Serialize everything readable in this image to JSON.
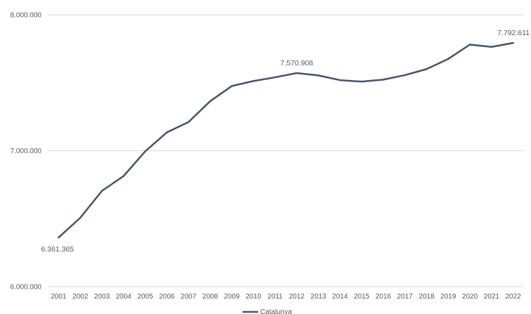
{
  "chart_data": {
    "type": "line",
    "title": "",
    "xlabel": "",
    "ylabel": "",
    "ylim": [
      6000000,
      8000000
    ],
    "yticks": [
      6000000,
      7000000,
      8000000
    ],
    "ytick_labels": [
      "6.000.000",
      "7.000.000",
      "8.000.000"
    ],
    "grid": "horizontal",
    "legend_position": "bottom",
    "categories": [
      "2001",
      "2002",
      "2003",
      "2004",
      "2005",
      "2006",
      "2007",
      "2008",
      "2009",
      "2010",
      "2011",
      "2012",
      "2013",
      "2014",
      "2015",
      "2016",
      "2017",
      "2018",
      "2019",
      "2020",
      "2021",
      "2022"
    ],
    "series": [
      {
        "name": "Catalunya",
        "color": "#44546a",
        "values": [
          6361365,
          6506440,
          6704146,
          6813319,
          6995206,
          7134697,
          7210508,
          7364078,
          7475420,
          7512381,
          7539618,
          7570908,
          7553650,
          7518903,
          7508106,
          7522596,
          7555830,
          7600065,
          7675217,
          7780479,
          7763362,
          7792611
        ]
      }
    ],
    "data_labels": [
      {
        "index": 0,
        "text": "6.361.365",
        "position": "below"
      },
      {
        "index": 11,
        "text": "7.570.908",
        "position": "above"
      },
      {
        "index": 21,
        "text": "7.792.611",
        "position": "above"
      }
    ]
  }
}
